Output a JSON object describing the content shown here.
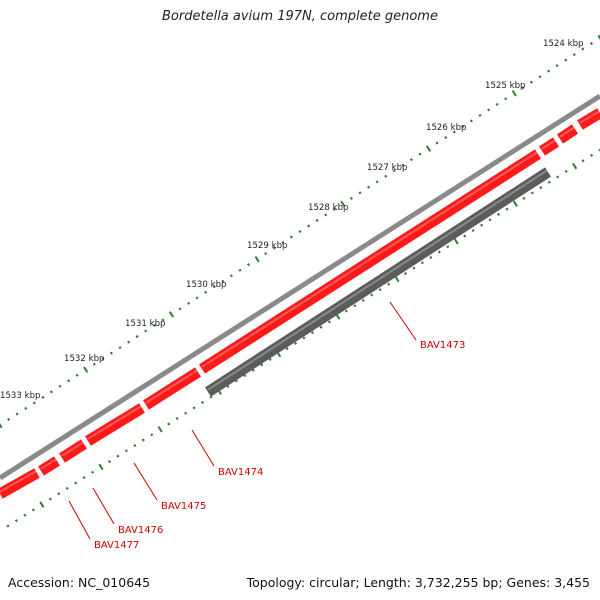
{
  "title": "Bordetella avium 197N, complete genome",
  "accession_label": "Accession: NC_010645",
  "stats_label": "Topology: circular; Length: 3,732,255 bp; Genes: 3,455",
  "colors": {
    "backbone": "#8a8a8a",
    "forward_feature": "#ff1a1a",
    "reverse_feature": "#5c5c5c",
    "tick": "#2e7d32",
    "gene_label": "#cc0000",
    "tick_label": "#222222"
  },
  "ticks": [
    {
      "label": "1524 kbp"
    },
    {
      "label": "1525 kbp"
    },
    {
      "label": "1526 kbp"
    },
    {
      "label": "1527 kbp"
    },
    {
      "label": "1528 kbp"
    },
    {
      "label": "1529 kbp"
    },
    {
      "label": "1530 kbp"
    },
    {
      "label": "1531 kbp"
    },
    {
      "label": "1532 kbp"
    },
    {
      "label": "1533 kbp"
    }
  ],
  "genes": [
    {
      "label": "BAV1473",
      "strand": "reverse"
    },
    {
      "label": "BAV1474",
      "strand": "forward"
    },
    {
      "label": "BAV1475",
      "strand": "forward"
    },
    {
      "label": "BAV1476",
      "strand": "forward"
    },
    {
      "label": "BAV1477",
      "strand": "forward"
    }
  ]
}
